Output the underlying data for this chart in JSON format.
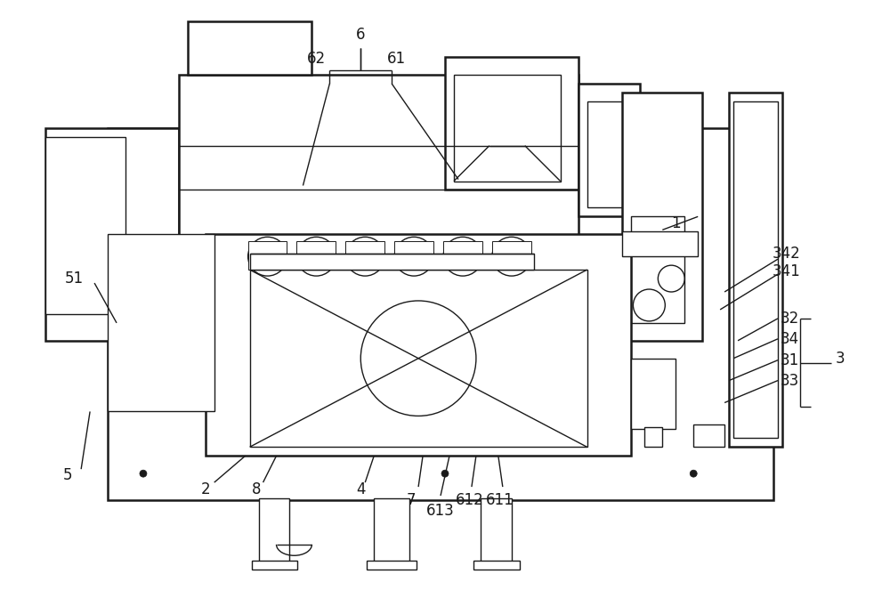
{
  "bg_color": "#ffffff",
  "line_color": "#1a1a1a",
  "label_color": "#1a1a1a",
  "font_size": 11
}
